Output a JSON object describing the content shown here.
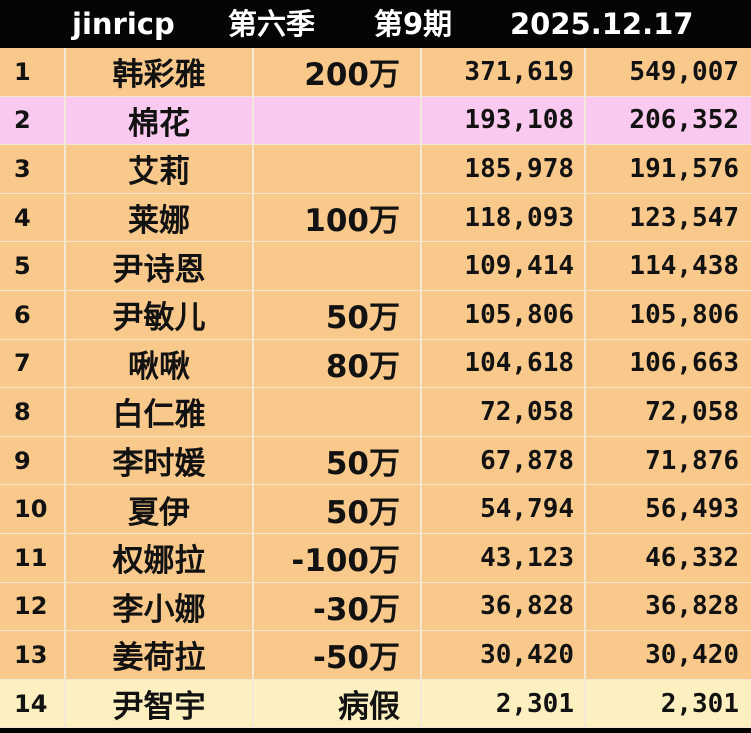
{
  "header": {
    "name": "jinricp",
    "season": "第六季",
    "episode": "第9期",
    "date": "2025.12.17"
  },
  "rows": [
    {
      "rank": "1",
      "name": "韩彩雅",
      "bonus": "200万",
      "value_a": "371,619",
      "value_b": "549,007"
    },
    {
      "rank": "2",
      "name": "棉花",
      "bonus": "",
      "value_a": "193,108",
      "value_b": "206,352"
    },
    {
      "rank": "3",
      "name": "艾莉",
      "bonus": "",
      "value_a": "185,978",
      "value_b": "191,576"
    },
    {
      "rank": "4",
      "name": "莱娜",
      "bonus": "100万",
      "value_a": "118,093",
      "value_b": "123,547"
    },
    {
      "rank": "5",
      "name": "尹诗恩",
      "bonus": "",
      "value_a": "109,414",
      "value_b": "114,438"
    },
    {
      "rank": "6",
      "name": "尹敏儿",
      "bonus": "50万",
      "value_a": "105,806",
      "value_b": "105,806"
    },
    {
      "rank": "7",
      "name": "啾啾",
      "bonus": "80万",
      "value_a": "104,618",
      "value_b": "106,663"
    },
    {
      "rank": "8",
      "name": "白仁雅",
      "bonus": "",
      "value_a": "72,058",
      "value_b": "72,058"
    },
    {
      "rank": "9",
      "name": "李时媛",
      "bonus": "50万",
      "value_a": "67,878",
      "value_b": "71,876"
    },
    {
      "rank": "10",
      "name": "夏伊",
      "bonus": "50万",
      "value_a": "54,794",
      "value_b": "56,493"
    },
    {
      "rank": "11",
      "name": "权娜拉",
      "bonus": "-100万",
      "value_a": "43,123",
      "value_b": "46,332"
    },
    {
      "rank": "12",
      "name": "李小娜",
      "bonus": "-30万",
      "value_a": "36,828",
      "value_b": "36,828"
    },
    {
      "rank": "13",
      "name": "姜荷拉",
      "bonus": "-50万",
      "value_a": "30,420",
      "value_b": "30,420"
    },
    {
      "rank": "14",
      "name": "尹智宇",
      "bonus": "病假",
      "value_a": "2,301",
      "value_b": "2,301"
    }
  ],
  "colors": {
    "row_default": "#f9c98c",
    "row_highlight": "#f9c9ef",
    "row_last": "#fcefc0",
    "header_bg": "#050505"
  }
}
